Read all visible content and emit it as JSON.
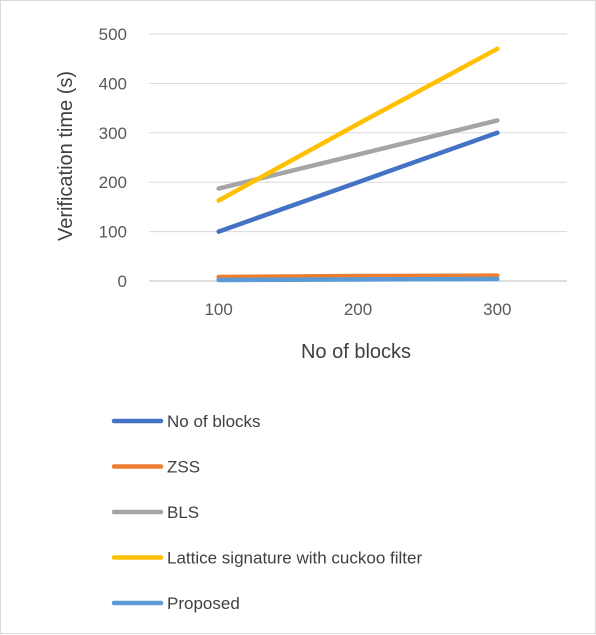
{
  "chart_data": {
    "type": "line",
    "title": "",
    "xlabel": "No of blocks",
    "ylabel": "Verification time (s)",
    "x": [
      100,
      200,
      300
    ],
    "ylim": [
      0,
      500
    ],
    "yticks": [
      0,
      100,
      200,
      300,
      400,
      500
    ],
    "grid": true,
    "legend_position": "bottom",
    "series": [
      {
        "name": "No of blocks",
        "values": [
          100,
          200,
          300
        ],
        "color": "#4472C4"
      },
      {
        "name": "ZSS",
        "values": [
          8,
          10,
          11
        ],
        "color": "#ED7D31"
      },
      {
        "name": "BLS",
        "values": [
          187,
          256,
          325
        ],
        "color": "#A5A5A5"
      },
      {
        "name": "Lattice signature with cuckoo filter",
        "values": [
          163,
          318,
          470
        ],
        "color": "#FFC000"
      },
      {
        "name": "Proposed",
        "values": [
          2,
          3,
          4
        ],
        "color": "#5B9BD5"
      }
    ]
  }
}
